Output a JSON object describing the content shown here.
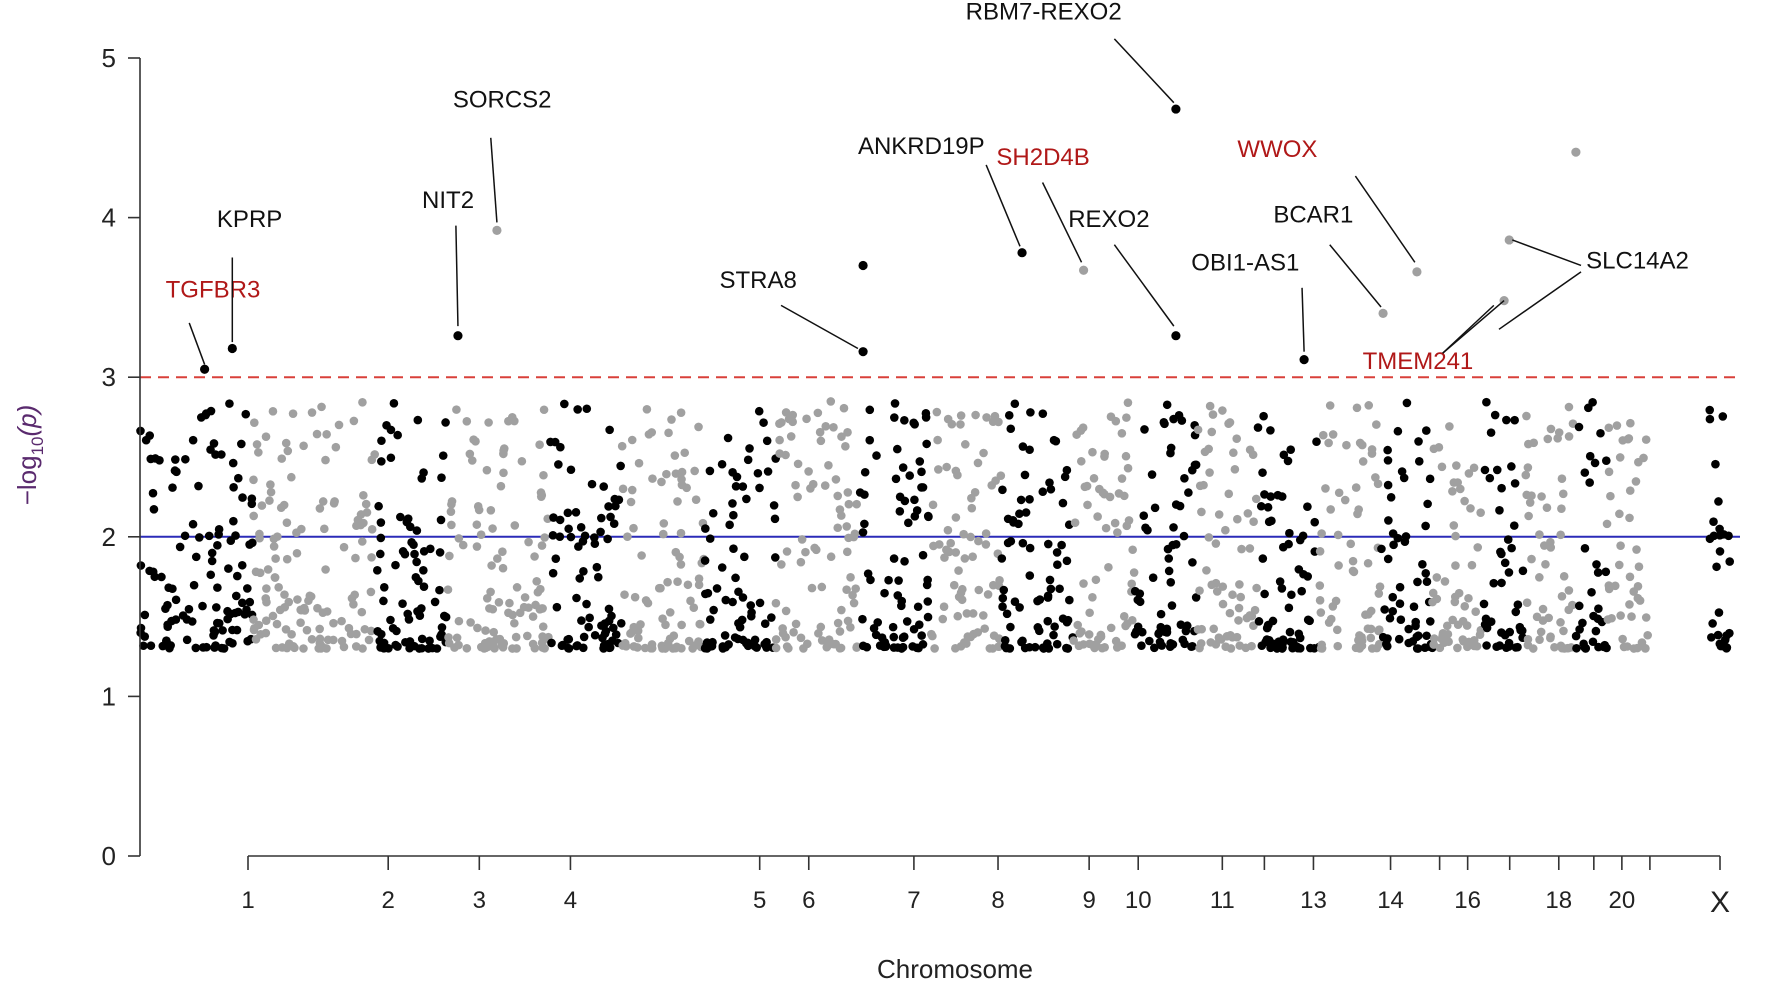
{
  "chart_data": {
    "type": "scatter",
    "subtype": "manhattan",
    "title": "",
    "xlabel": "Chromosome",
    "ylabel": "-log10(p)",
    "ylabel_main": "−log",
    "ylabel_sub": "10",
    "ylabel_paren": "(p)",
    "ylim": [
      0,
      5
    ],
    "yticks": [
      0,
      1,
      2,
      3,
      4,
      5
    ],
    "xlim": [
      0.3,
      24.0
    ],
    "colors": {
      "odd": "#000000",
      "even": "#a0a0a0",
      "blue_line": "#2b2bb8",
      "red_line": "#d9403a",
      "gene_red": "#b01818",
      "gene_black": "#111111"
    },
    "thresholds": {
      "suggestive": 2,
      "significant": 3
    },
    "chromosome_tick_positions": [
      1,
      2,
      3,
      4,
      5,
      6,
      7,
      8,
      9,
      10,
      11,
      12,
      13,
      14,
      15,
      16,
      17,
      18,
      19,
      20,
      21,
      22,
      23
    ],
    "chromosome_tick_labels": [
      {
        "pos": 1,
        "label": "1"
      },
      {
        "pos": 3,
        "label": "2"
      },
      {
        "pos": 4.3,
        "label": "3"
      },
      {
        "pos": 5.6,
        "label": "4"
      },
      {
        "pos": 8.3,
        "label": "5"
      },
      {
        "pos": 9.0,
        "label": "6"
      },
      {
        "pos": 10.5,
        "label": "7"
      },
      {
        "pos": 11.7,
        "label": "8"
      },
      {
        "pos": 13.0,
        "label": "9"
      },
      {
        "pos": 13.7,
        "label": "10"
      },
      {
        "pos": 14.9,
        "label": "11"
      },
      {
        "pos": 16.2,
        "label": "13"
      },
      {
        "pos": 17.3,
        "label": "14"
      },
      {
        "pos": 18.4,
        "label": "16"
      },
      {
        "pos": 19.7,
        "label": "18"
      },
      {
        "pos": 20.6,
        "label": "20"
      },
      {
        "pos": 22.0,
        "label": "X"
      }
    ],
    "axis_ticks": [
      1,
      3,
      4.3,
      5.6,
      8.3,
      9.0,
      10.5,
      11.7,
      13.0,
      13.7,
      14.9,
      15.5,
      16.2,
      17.3,
      18.0,
      18.4,
      19.0,
      19.7,
      20.2,
      20.6,
      21.0,
      22.0
    ],
    "chromosome_segments": [
      {
        "chr": "1",
        "start": 0.3,
        "end": 1.4,
        "color": "odd"
      },
      {
        "chr": "2",
        "start": 1.4,
        "end": 2.6,
        "color": "even"
      },
      {
        "chr": "3",
        "start": 2.6,
        "end": 3.3,
        "color": "odd"
      },
      {
        "chr": "4",
        "start": 3.3,
        "end": 4.3,
        "color": "even"
      },
      {
        "chr": "5",
        "start": 4.3,
        "end": 5.0,
        "color": "odd"
      },
      {
        "chr": "6",
        "start": 5.0,
        "end": 5.8,
        "color": "even"
      },
      {
        "chr": "7",
        "start": 5.8,
        "end": 6.5,
        "color": "odd"
      },
      {
        "chr": "8",
        "start": 6.5,
        "end": 7.3,
        "color": "even"
      },
      {
        "chr": "9",
        "start": 7.3,
        "end": 8.0,
        "color": "odd"
      },
      {
        "chr": "10",
        "start": 8.0,
        "end": 8.7,
        "color": "even"
      },
      {
        "chr": "11",
        "start": 8.7,
        "end": 9.4,
        "color": "odd"
      },
      {
        "chr": "12",
        "start": 9.4,
        "end": 10.0,
        "color": "even"
      },
      {
        "chr": "13",
        "start": 10.0,
        "end": 10.6,
        "color": "odd"
      },
      {
        "chr": "14",
        "start": 10.6,
        "end": 11.2,
        "color": "even"
      },
      {
        "chr": "15",
        "start": 11.2,
        "end": 11.8,
        "color": "odd"
      },
      {
        "chr": "16",
        "start": 11.8,
        "end": 12.4,
        "color": "even"
      },
      {
        "chr": "17",
        "start": 12.4,
        "end": 12.9,
        "color": "odd"
      },
      {
        "chr": "18",
        "start": 12.9,
        "end": 13.4,
        "color": "even"
      },
      {
        "chr": "19",
        "start": 13.4,
        "end": 13.8,
        "color": "odd"
      },
      {
        "chr": "20",
        "start": 13.8,
        "end": 14.3,
        "color": "even"
      },
      {
        "chr": "21",
        "start": 14.3,
        "end": 14.6,
        "color": "odd"
      },
      {
        "chr": "22",
        "start": 14.6,
        "end": 15.0,
        "color": "even"
      },
      {
        "chr": "X",
        "start": 15.6,
        "end": 15.8,
        "color": "odd"
      }
    ],
    "highlighted_points": [
      {
        "gene": "TGFBR3",
        "x": 0.93,
        "y": 3.05,
        "color": "odd"
      },
      {
        "gene": "KPRP",
        "x": 1.2,
        "y": 3.18,
        "color": "odd"
      },
      {
        "gene": "NIT2",
        "x": 3.4,
        "y": 3.26,
        "color": "odd"
      },
      {
        "gene": "SORCS2",
        "x": 3.78,
        "y": 3.92,
        "color": "even"
      },
      {
        "gene": "STRA8",
        "x": 7.35,
        "y": 3.16,
        "color": "odd"
      },
      {
        "gene": "",
        "x": 7.35,
        "y": 3.7,
        "color": "odd"
      },
      {
        "gene": "ANKRD19P",
        "x": 8.9,
        "y": 3.78,
        "color": "odd"
      },
      {
        "gene": "SH2D4B",
        "x": 9.5,
        "y": 3.67,
        "color": "even"
      },
      {
        "gene": "RBM7-REXO2",
        "x": 10.4,
        "y": 4.68,
        "color": "odd"
      },
      {
        "gene": "REXO2",
        "x": 10.4,
        "y": 3.26,
        "color": "odd"
      },
      {
        "gene": "OBI1-AS1",
        "x": 11.65,
        "y": 3.11,
        "color": "odd"
      },
      {
        "gene": "BCAR1",
        "x": 12.42,
        "y": 3.4,
        "color": "even"
      },
      {
        "gene": "WWOX",
        "x": 12.75,
        "y": 3.66,
        "color": "even"
      },
      {
        "gene": "SLC14A2",
        "x": 13.65,
        "y": 3.86,
        "color": "even"
      },
      {
        "gene": "TMEM241",
        "x": 13.6,
        "y": 3.48,
        "color": "even"
      },
      {
        "gene": "",
        "x": 14.3,
        "y": 4.41,
        "color": "even"
      }
    ],
    "annotations": [
      {
        "label": "TGFBR3",
        "color": "red",
        "text_x": 0.55,
        "text_y": 3.5,
        "line_from": [
          0.78,
          3.34
        ],
        "line_to": [
          0.93,
          3.08
        ]
      },
      {
        "label": "KPRP",
        "color": "black",
        "text_x": 1.05,
        "text_y": 3.94,
        "line_from": [
          1.2,
          3.75
        ],
        "line_to": [
          1.2,
          3.22
        ]
      },
      {
        "label": "NIT2",
        "color": "black",
        "text_x": 3.05,
        "text_y": 4.06,
        "line_from": [
          3.38,
          3.95
        ],
        "line_to": [
          3.4,
          3.32
        ]
      },
      {
        "label": "SORCS2",
        "color": "black",
        "text_x": 3.35,
        "text_y": 4.69,
        "line_from": [
          3.72,
          4.5
        ],
        "line_to": [
          3.78,
          3.97
        ]
      },
      {
        "label": "STRA8",
        "color": "black",
        "text_x": 5.95,
        "text_y": 3.56,
        "line_from": [
          6.55,
          3.45
        ],
        "line_to": [
          7.3,
          3.18
        ]
      },
      {
        "label": "ANKRD19P",
        "color": "black",
        "text_x": 7.3,
        "text_y": 4.4,
        "line_from": [
          8.55,
          4.33
        ],
        "line_to": [
          8.88,
          3.82
        ]
      },
      {
        "label": "SH2D4B",
        "color": "red",
        "text_x": 8.65,
        "text_y": 4.33,
        "line_from": [
          9.1,
          4.22
        ],
        "line_to": [
          9.48,
          3.72
        ]
      },
      {
        "label": "RBM7-REXO2",
        "color": "black",
        "text_x": 8.35,
        "text_y": 5.24,
        "line_from": [
          9.8,
          5.12
        ],
        "line_to": [
          10.38,
          4.72
        ]
      },
      {
        "label": "REXO2",
        "color": "black",
        "text_x": 9.35,
        "text_y": 3.94,
        "line_from": [
          9.8,
          3.83
        ],
        "line_to": [
          10.38,
          3.32
        ]
      },
      {
        "label": "OBI1-AS1",
        "color": "black",
        "text_x": 10.55,
        "text_y": 3.67,
        "line_from": [
          11.63,
          3.56
        ],
        "line_to": [
          11.65,
          3.16
        ]
      },
      {
        "label": "BCAR1",
        "color": "black",
        "text_x": 11.35,
        "text_y": 3.97,
        "line_from": [
          11.9,
          3.83
        ],
        "line_to": [
          12.4,
          3.44
        ]
      },
      {
        "label": "WWOX",
        "color": "red",
        "text_x": 11.0,
        "text_y": 4.38,
        "line_from": [
          12.15,
          4.26
        ],
        "line_to": [
          12.73,
          3.72
        ]
      },
      {
        "label": "SLC14A2",
        "color": "black",
        "text_x": 14.4,
        "text_y": 3.68,
        "line_from": [
          14.35,
          3.7
        ],
        "line_to": [
          13.68,
          3.86
        ]
      },
      {
        "label": "TMEM241",
        "color": "red",
        "text_x": 12.22,
        "text_y": 3.05,
        "line_from": [
          13.0,
          3.15
        ],
        "line_to": [
          13.6,
          3.48
        ]
      }
    ]
  }
}
